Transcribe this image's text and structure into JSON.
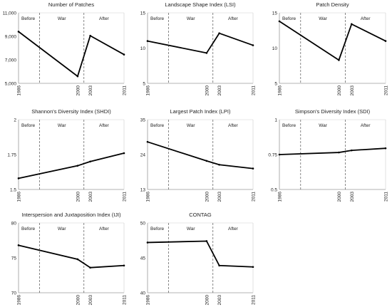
{
  "chart_data": [
    {
      "type": "line",
      "title": "Number of Patches",
      "x": [
        "1986",
        "2000",
        "2003",
        "2011"
      ],
      "values": [
        9400,
        5600,
        9050,
        7450
      ],
      "ylim": [
        5000,
        11000
      ],
      "yticks": [
        "5,000",
        "7,000",
        "9,000",
        "11,000"
      ],
      "ytick_values": [
        5000,
        7000,
        9000,
        11000
      ],
      "periods": [
        "Before",
        "War",
        "After"
      ],
      "grid": false
    },
    {
      "type": "line",
      "title": "Landscape Shape Index (LSI)",
      "x": [
        "1986",
        "2000",
        "2003",
        "2011"
      ],
      "values": [
        11.0,
        9.3,
        12.1,
        10.4
      ],
      "ylim": [
        5,
        15
      ],
      "yticks": [
        "5",
        "10",
        "15"
      ],
      "ytick_values": [
        5,
        10,
        15
      ],
      "periods": [
        "Before",
        "War",
        "After"
      ],
      "grid": false
    },
    {
      "type": "line",
      "title": "Patch Density",
      "x": [
        "1986",
        "2000",
        "2003",
        "2011"
      ],
      "values": [
        13.8,
        8.3,
        13.4,
        11.0
      ],
      "ylim": [
        5,
        15
      ],
      "yticks": [
        "5",
        "10",
        "15"
      ],
      "ytick_values": [
        5,
        10,
        15
      ],
      "periods": [
        "Before",
        "War",
        "After"
      ],
      "grid": false
    },
    {
      "type": "line",
      "title": "Shannon's Diversity Index (SHDI)",
      "x": [
        "1986",
        "2000",
        "2003",
        "2011"
      ],
      "values": [
        1.58,
        1.67,
        1.7,
        1.76
      ],
      "ylim": [
        1.5,
        2
      ],
      "yticks": [
        "1.5",
        "1.75",
        "2"
      ],
      "ytick_values": [
        1.5,
        1.75,
        2
      ],
      "periods": [
        "Before",
        "War",
        "After"
      ],
      "grid": false
    },
    {
      "type": "line",
      "title": "Largest Patch Index (LPI)",
      "x": [
        "1986",
        "2000",
        "2003",
        "2011"
      ],
      "values": [
        28.0,
        22.0,
        20.8,
        19.6
      ],
      "ylim": [
        13,
        35
      ],
      "yticks": [
        "13",
        "24",
        "35"
      ],
      "ytick_values": [
        13,
        24,
        35
      ],
      "periods": [
        "Before",
        "War",
        "After"
      ],
      "grid": false
    },
    {
      "type": "line",
      "title": "Simpson's Diversity Index (SDI)",
      "x": [
        "1986",
        "2000",
        "2003",
        "2011"
      ],
      "values": [
        0.75,
        0.765,
        0.78,
        0.795
      ],
      "ylim": [
        0.5,
        1
      ],
      "yticks": [
        "0.5",
        "0.75",
        "1"
      ],
      "ytick_values": [
        0.5,
        0.75,
        1
      ],
      "periods": [
        "Before",
        "War",
        "After"
      ],
      "grid": false
    },
    {
      "type": "line",
      "title": "Interspersion and Juxtaposition Index (IJI)",
      "x": [
        "1986",
        "2000",
        "2003",
        "2011"
      ],
      "values": [
        76.8,
        74.8,
        73.6,
        73.9
      ],
      "ylim": [
        70,
        80
      ],
      "yticks": [
        "70",
        "75",
        "80"
      ],
      "ytick_values": [
        70,
        75,
        80
      ],
      "periods": [
        "Before",
        "War",
        "After"
      ],
      "grid": false
    },
    {
      "type": "line",
      "title": "CONTAG",
      "x": [
        "1986",
        "2000",
        "2003",
        "2011"
      ],
      "values": [
        47.2,
        47.4,
        43.9,
        43.7
      ],
      "ylim": [
        40,
        50
      ],
      "yticks": [
        "40",
        "45",
        "50"
      ],
      "ytick_values": [
        40,
        45,
        50
      ],
      "periods": [
        "Before",
        "War",
        "After"
      ],
      "grid": false
    }
  ]
}
